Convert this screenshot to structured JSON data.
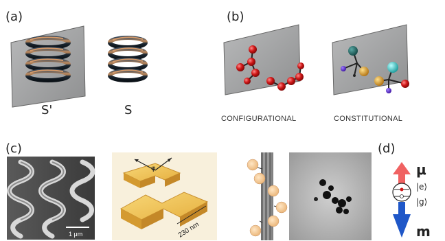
{
  "panels": {
    "a": {
      "label": "(a)",
      "mirror_label": "S'",
      "object_label": "S"
    },
    "b": {
      "label": "(b)",
      "left_caption": "CONFIGURATIONAL",
      "right_caption": "CONSTITUTIONAL"
    },
    "c": {
      "label": "(c)",
      "scale_bar_sem": "1 μm",
      "dimension_label": "230 nm",
      "angle_symbol": "φ"
    },
    "d": {
      "label": "(d)",
      "mu_symbol": "μ",
      "m_symbol": "m",
      "excited_state": "|e⟩",
      "ground_state": "|g⟩"
    }
  },
  "colors": {
    "mirror_fill": "#a9aaab",
    "red_atom": "#d01818",
    "teal_atom": "#1e6e6a",
    "cyan_atom": "#3cc8c8",
    "orange_atom": "#e0a020",
    "purple_atom": "#5a1fd0",
    "arrow_red": "#f06262",
    "arrow_blue": "#1f57c8",
    "gold": "#e8b84a"
  }
}
